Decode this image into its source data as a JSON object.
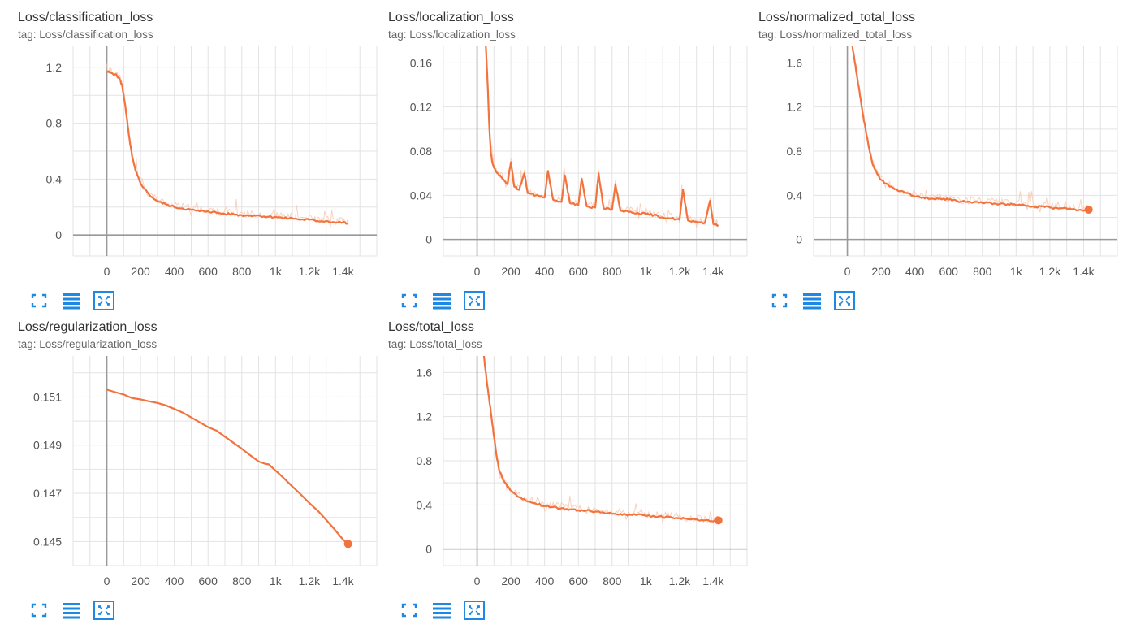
{
  "colors": {
    "series": "#f2733d",
    "series_light": "#f9c5ad",
    "grid": "#e3e3e3",
    "axis": "#999999",
    "icon": "#1e88e5"
  },
  "buttons": {
    "expand": "expand-icon",
    "list": "list-icon",
    "fit": "fit-domain-icon"
  },
  "chart_data": [
    {
      "type": "line",
      "title": "Loss/classification_loss",
      "tag": "tag: Loss/classification_loss",
      "xlim": [
        -200,
        1600
      ],
      "ylim": [
        -0.15,
        1.35
      ],
      "xticks": [
        0,
        200,
        400,
        600,
        800,
        1000,
        1200,
        1400
      ],
      "xtick_labels": [
        "0",
        "200",
        "400",
        "600",
        "800",
        "1k",
        "1.2k",
        "1.4k"
      ],
      "yticks": [
        0,
        0.4,
        0.8,
        1.2
      ],
      "ytick_labels": [
        "0",
        "0.4",
        "0.8",
        "1.2"
      ],
      "series": [
        {
          "x": [
            0,
            25,
            50,
            75,
            90,
            100,
            115,
            130,
            150,
            170,
            200,
            250,
            300,
            350,
            400,
            450,
            500,
            550,
            600,
            650,
            700,
            750,
            800,
            850,
            900,
            950,
            1000,
            1050,
            1100,
            1150,
            1200,
            1250,
            1300,
            1350,
            1400,
            1430
          ],
          "y": [
            1.17,
            1.16,
            1.15,
            1.12,
            1.07,
            1.0,
            0.87,
            0.72,
            0.56,
            0.46,
            0.37,
            0.29,
            0.24,
            0.22,
            0.2,
            0.19,
            0.18,
            0.17,
            0.17,
            0.16,
            0.15,
            0.15,
            0.14,
            0.14,
            0.14,
            0.13,
            0.13,
            0.12,
            0.12,
            0.11,
            0.11,
            0.1,
            0.1,
            0.09,
            0.09,
            0.08
          ]
        }
      ],
      "end_marker": false
    },
    {
      "type": "line",
      "title": "Loss/localization_loss",
      "tag": "tag: Loss/localization_loss",
      "xlim": [
        -200,
        1600
      ],
      "ylim": [
        -0.015,
        0.175
      ],
      "xticks": [
        0,
        200,
        400,
        600,
        800,
        1000,
        1200,
        1400
      ],
      "xtick_labels": [
        "0",
        "200",
        "400",
        "600",
        "800",
        "1k",
        "1.2k",
        "1.4k"
      ],
      "yticks": [
        0,
        0.04,
        0.08,
        0.12,
        0.16
      ],
      "ytick_labels": [
        "0",
        "0.04",
        "0.08",
        "0.12",
        "0.16"
      ],
      "series": [
        {
          "x": [
            50,
            60,
            70,
            80,
            90,
            100,
            120,
            150,
            180,
            200,
            220,
            250,
            280,
            300,
            350,
            400,
            420,
            450,
            500,
            520,
            550,
            600,
            620,
            650,
            700,
            720,
            750,
            800,
            820,
            850,
            900,
            950,
            1000,
            1050,
            1100,
            1150,
            1200,
            1220,
            1250,
            1300,
            1350,
            1380,
            1400,
            1430
          ],
          "y": [
            0.18,
            0.15,
            0.11,
            0.08,
            0.07,
            0.065,
            0.06,
            0.055,
            0.05,
            0.07,
            0.048,
            0.045,
            0.06,
            0.042,
            0.04,
            0.038,
            0.062,
            0.036,
            0.034,
            0.058,
            0.033,
            0.031,
            0.055,
            0.03,
            0.029,
            0.06,
            0.028,
            0.027,
            0.05,
            0.026,
            0.025,
            0.024,
            0.023,
            0.022,
            0.02,
            0.019,
            0.018,
            0.045,
            0.017,
            0.016,
            0.015,
            0.035,
            0.014,
            0.013
          ]
        }
      ],
      "end_marker": false
    },
    {
      "type": "line",
      "title": "Loss/normalized_total_loss",
      "tag": "tag: Loss/normalized_total_loss",
      "xlim": [
        -200,
        1600
      ],
      "ylim": [
        -0.15,
        1.75
      ],
      "xticks": [
        0,
        200,
        400,
        600,
        800,
        1000,
        1200,
        1400
      ],
      "xtick_labels": [
        "0",
        "200",
        "400",
        "600",
        "800",
        "1k",
        "1.2k",
        "1.4k"
      ],
      "yticks": [
        0,
        0.4,
        0.8,
        1.2,
        1.6
      ],
      "ytick_labels": [
        "0",
        "0.4",
        "0.8",
        "1.2",
        "1.6"
      ],
      "series": [
        {
          "x": [
            30,
            45,
            60,
            75,
            90,
            110,
            130,
            150,
            175,
            200,
            250,
            300,
            350,
            400,
            450,
            500,
            550,
            600,
            650,
            700,
            750,
            800,
            850,
            900,
            950,
            1000,
            1050,
            1100,
            1150,
            1200,
            1250,
            1300,
            1350,
            1400,
            1430
          ],
          "y": [
            1.75,
            1.6,
            1.45,
            1.3,
            1.15,
            0.98,
            0.82,
            0.68,
            0.6,
            0.54,
            0.48,
            0.44,
            0.42,
            0.39,
            0.38,
            0.37,
            0.37,
            0.36,
            0.35,
            0.34,
            0.34,
            0.33,
            0.33,
            0.32,
            0.32,
            0.31,
            0.31,
            0.3,
            0.3,
            0.29,
            0.28,
            0.28,
            0.27,
            0.26,
            0.27
          ]
        }
      ],
      "end_marker": true
    },
    {
      "type": "line",
      "title": "Loss/regularization_loss",
      "tag": "tag: Loss/regularization_loss",
      "xlim": [
        -200,
        1600
      ],
      "ylim": [
        0.144,
        0.1527
      ],
      "xticks": [
        0,
        200,
        400,
        600,
        800,
        1000,
        1200,
        1400
      ],
      "xtick_labels": [
        "0",
        "200",
        "400",
        "600",
        "800",
        "1k",
        "1.2k",
        "1.4k"
      ],
      "yticks": [
        0.145,
        0.147,
        0.149,
        0.151
      ],
      "ytick_labels": [
        "0.145",
        "0.147",
        "0.149",
        "0.151"
      ],
      "series": [
        {
          "x": [
            0,
            50,
            100,
            150,
            200,
            250,
            300,
            350,
            400,
            450,
            500,
            550,
            600,
            650,
            700,
            750,
            800,
            850,
            900,
            940,
            960,
            1000,
            1050,
            1100,
            1150,
            1200,
            1250,
            1300,
            1350,
            1400,
            1430
          ],
          "y": [
            0.1513,
            0.1512,
            0.1511,
            0.15095,
            0.1509,
            0.15082,
            0.15075,
            0.15065,
            0.1505,
            0.15035,
            0.15015,
            0.14995,
            0.14975,
            0.1496,
            0.14935,
            0.1491,
            0.14885,
            0.14858,
            0.14832,
            0.14822,
            0.1482,
            0.14795,
            0.14762,
            0.14728,
            0.14695,
            0.1466,
            0.14628,
            0.1459,
            0.1455,
            0.14508,
            0.1449
          ]
        }
      ],
      "end_marker": true
    },
    {
      "type": "line",
      "title": "Loss/total_loss",
      "tag": "tag: Loss/total_loss",
      "xlim": [
        -200,
        1600
      ],
      "ylim": [
        -0.15,
        1.75
      ],
      "xticks": [
        0,
        200,
        400,
        600,
        800,
        1000,
        1200,
        1400
      ],
      "xtick_labels": [
        "0",
        "200",
        "400",
        "600",
        "800",
        "1k",
        "1.2k",
        "1.4k"
      ],
      "yticks": [
        0,
        0.4,
        0.8,
        1.2,
        1.6
      ],
      "ytick_labels": [
        "0",
        "0.4",
        "0.8",
        "1.2",
        "1.6"
      ],
      "series": [
        {
          "x": [
            40,
            55,
            70,
            85,
            100,
            115,
            130,
            150,
            175,
            200,
            250,
            300,
            350,
            400,
            450,
            500,
            550,
            600,
            650,
            700,
            750,
            800,
            850,
            900,
            950,
            1000,
            1050,
            1100,
            1150,
            1200,
            1250,
            1300,
            1350,
            1400,
            1430
          ],
          "y": [
            1.75,
            1.55,
            1.38,
            1.2,
            1.02,
            0.85,
            0.72,
            0.64,
            0.58,
            0.53,
            0.47,
            0.43,
            0.41,
            0.39,
            0.38,
            0.37,
            0.36,
            0.35,
            0.35,
            0.34,
            0.33,
            0.32,
            0.32,
            0.31,
            0.31,
            0.3,
            0.3,
            0.29,
            0.29,
            0.28,
            0.27,
            0.27,
            0.26,
            0.25,
            0.26
          ]
        }
      ],
      "end_marker": true
    }
  ]
}
